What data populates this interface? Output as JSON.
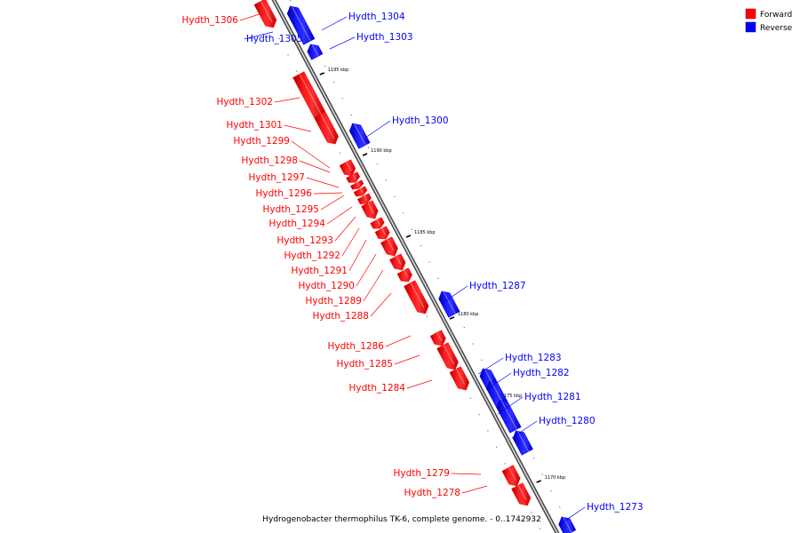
{
  "legend": {
    "forward_label": "Forward",
    "reverse_label": "Reverse",
    "forward_color": "#ff0000",
    "reverse_color": "#0000ff"
  },
  "caption": "Hydrogenobacter thermophilus TK-6, complete genome. - 0..1742932",
  "genes": [
    {
      "id": "Hydth_1306",
      "strand": "forward"
    },
    {
      "id": "Hydth_1305",
      "strand": "reverse"
    },
    {
      "id": "Hydth_1304",
      "strand": "reverse"
    },
    {
      "id": "Hydth_1303",
      "strand": "reverse"
    },
    {
      "id": "Hydth_1302",
      "strand": "forward"
    },
    {
      "id": "Hydth_1301",
      "strand": "forward"
    },
    {
      "id": "Hydth_1300",
      "strand": "reverse"
    },
    {
      "id": "Hydth_1299",
      "strand": "forward"
    },
    {
      "id": "Hydth_1298",
      "strand": "forward"
    },
    {
      "id": "Hydth_1297",
      "strand": "forward"
    },
    {
      "id": "Hydth_1296",
      "strand": "forward"
    },
    {
      "id": "Hydth_1295",
      "strand": "forward"
    },
    {
      "id": "Hydth_1294",
      "strand": "forward"
    },
    {
      "id": "Hydth_1293",
      "strand": "forward"
    },
    {
      "id": "Hydth_1292",
      "strand": "forward"
    },
    {
      "id": "Hydth_1291",
      "strand": "forward"
    },
    {
      "id": "Hydth_1290",
      "strand": "forward"
    },
    {
      "id": "Hydth_1289",
      "strand": "forward"
    },
    {
      "id": "Hydth_1288",
      "strand": "forward"
    },
    {
      "id": "Hydth_1287",
      "strand": "reverse"
    },
    {
      "id": "Hydth_1286",
      "strand": "forward"
    },
    {
      "id": "Hydth_1285",
      "strand": "forward"
    },
    {
      "id": "Hydth_1284",
      "strand": "forward"
    },
    {
      "id": "Hydth_1283",
      "strand": "reverse"
    },
    {
      "id": "Hydth_1282",
      "strand": "reverse"
    },
    {
      "id": "Hydth_1281",
      "strand": "reverse"
    },
    {
      "id": "Hydth_1280",
      "strand": "reverse"
    },
    {
      "id": "Hydth_1279",
      "strand": "forward"
    },
    {
      "id": "Hydth_1278",
      "strand": "forward"
    },
    {
      "id": "Hydth_1273",
      "strand": "reverse"
    }
  ],
  "scale_ticks": [
    "1195 kbp",
    "1190 kbp",
    "1185 kbp",
    "1180 kbp",
    "1175 kbp",
    "1170 kbp"
  ]
}
